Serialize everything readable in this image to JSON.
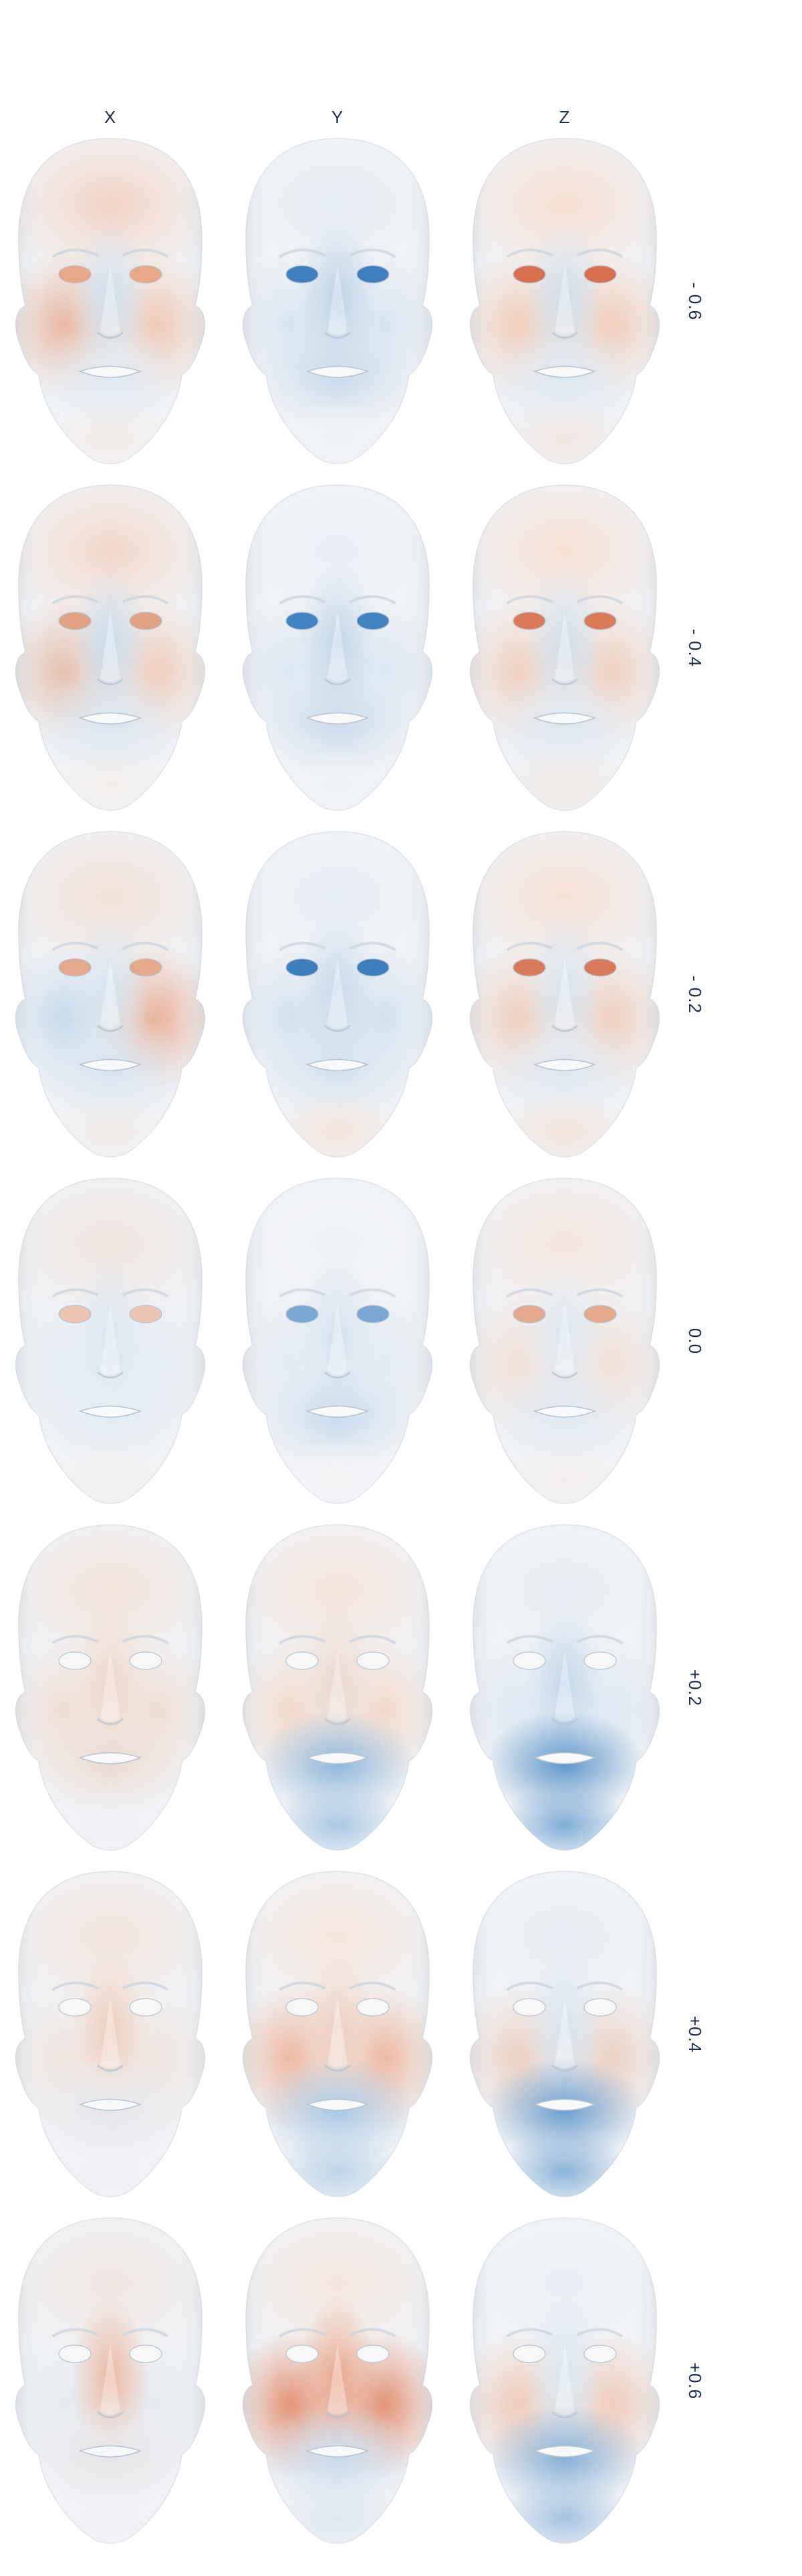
{
  "columns": [
    "X",
    "Y",
    "Z"
  ],
  "rows": [
    {
      "label": "- 0.6",
      "faces": [
        {
          "forehead": "#f3d3c4",
          "cheek_l": "#e9b9a2",
          "cheek_r": "#f0c9b5",
          "mid": "#cfe0ee",
          "lower": "#dfe8f1",
          "chin": "#f3ece8",
          "eye": "#e8a887"
        },
        {
          "forehead": "#e7eef5",
          "cheek_l": "#d6e4f0",
          "cheek_r": "#d6e4f0",
          "mid": "#bcd3e7",
          "lower": "#c9dbeb",
          "chin": "#eef2f6",
          "eye": "#3f7fbf"
        },
        {
          "forehead": "#f6ddd0",
          "cheek_l": "#f1cdb9",
          "cheek_r": "#f1cdb9",
          "mid": "#cfdeeb",
          "lower": "#dbe6f0",
          "chin": "#f1e6e0",
          "eye": "#d8704f"
        }
      ]
    },
    {
      "label": "- 0.4",
      "faces": [
        {
          "forehead": "#f3d7c9",
          "cheek_l": "#e6c0ad",
          "cheek_r": "#f0cdbb",
          "mid": "#c9dcec",
          "lower": "#d8e4ef",
          "chin": "#f2eeeb",
          "eye": "#e2a284"
        },
        {
          "forehead": "#e9f0f6",
          "cheek_l": "#d9e6f1",
          "cheek_r": "#d9e6f1",
          "mid": "#c1d6e9",
          "lower": "#cadcec",
          "chin": "#eef2f6",
          "eye": "#4183c2"
        },
        {
          "forehead": "#f6dfd2",
          "cheek_l": "#f0d0bf",
          "cheek_r": "#f0d0bf",
          "mid": "#d0dfec",
          "lower": "#dce6f0",
          "chin": "#f0e8e3",
          "eye": "#d97a59"
        }
      ]
    },
    {
      "label": "- 0.2",
      "faces": [
        {
          "forehead": "#f1dfd5",
          "cheek_l": "#c7dbec",
          "cheek_r": "#e9b39b",
          "mid": "#d5e3ef",
          "lower": "#d6e3ef",
          "chin": "#f1ece9",
          "eye": "#e3a98c"
        },
        {
          "forehead": "#e8eff6",
          "cheek_l": "#d2e2ef",
          "cheek_r": "#d2e2ef",
          "mid": "#c7daeb",
          "lower": "#d2e1ee",
          "chin": "#f4e4da",
          "eye": "#3d7ebf"
        },
        {
          "forehead": "#f5dfd3",
          "cheek_l": "#efcfbe",
          "cheek_r": "#efcfbe",
          "mid": "#d6e3ee",
          "lower": "#dde7f0",
          "chin": "#f3e3d9",
          "eye": "#d97b5a"
        }
      ]
    },
    {
      "label": "0.0",
      "faces": [
        {
          "forehead": "#f0e4de",
          "cheek_l": "#e4ecf4",
          "cheek_r": "#e4ecf4",
          "mid": "#d8e5f0",
          "lower": "#e2ebf3",
          "chin": "#f1efee",
          "eye": "#eac4b1"
        },
        {
          "forehead": "#eef2f6",
          "cheek_l": "#e1eaf3",
          "cheek_r": "#e1eaf3",
          "mid": "#d3e2ef",
          "lower": "#c9dced",
          "chin": "#f2f3f5",
          "eye": "#7aa8d3"
        },
        {
          "forehead": "#f4e5dd",
          "cheek_l": "#efded4",
          "cheek_r": "#efded4",
          "mid": "#dce7f1",
          "lower": "#e0e9f2",
          "chin": "#f2eeec",
          "eye": "#e2a98c"
        }
      ]
    },
    {
      "label": "+0.2",
      "faces": [
        {
          "forehead": "#f2e2d9",
          "cheek_l": "#efdcd1",
          "cheek_r": "#efdcd1",
          "mid": "#f0d6c8",
          "lower": "#ebdad0",
          "chin": "#eef0f3",
          "eye": "#f7f7f7"
        },
        {
          "forehead": "#f5e4da",
          "cheek_l": "#f2d9ca",
          "cheek_r": "#f2d9ca",
          "mid": "#ecd8cd",
          "lower": "#8fb8dc",
          "chin": "#a9c8e4",
          "eye": "#f7f7f7"
        },
        {
          "forehead": "#e9eff5",
          "cheek_l": "#dbe7f2",
          "cheek_r": "#dbe7f2",
          "mid": "#c2d7ea",
          "lower": "#5e97cb",
          "chin": "#7fadd7",
          "eye": "#f7f7f7"
        }
      ]
    },
    {
      "label": "+0.4",
      "faces": [
        {
          "forehead": "#f3e4dc",
          "cheek_l": "#eee3dd",
          "cheek_r": "#eee3dd",
          "mid": "#efcdbb",
          "lower": "#e6e6ea",
          "chin": "#eef0f3",
          "eye": "#f7f7f7"
        },
        {
          "forehead": "#f6e6dc",
          "cheek_l": "#eeb9a0",
          "cheek_r": "#eeb9a0",
          "mid": "#efd0c0",
          "lower": "#a9c8e4",
          "chin": "#bcd4e9",
          "eye": "#f7f7f7"
        },
        {
          "forehead": "#e9eff5",
          "cheek_l": "#ecd0c2",
          "cheek_r": "#ecd0c2",
          "mid": "#d5e3ef",
          "lower": "#6c9fcf",
          "chin": "#8ab4da",
          "eye": "#f7f7f7"
        }
      ]
    },
    {
      "label": "+0.6",
      "faces": [
        {
          "forehead": "#f0e6e1",
          "cheek_l": "#e6eaf0",
          "cheek_r": "#e6eaf0",
          "mid": "#ebb7a0",
          "lower": "#e6e4e6",
          "chin": "#eef0f3",
          "eye": "#f7f7f7"
        },
        {
          "forehead": "#f4e6de",
          "cheek_l": "#e49577",
          "cheek_r": "#e49577",
          "mid": "#eaa98c",
          "lower": "#c7d9eb",
          "chin": "#dbe6f0",
          "eye": "#f7f7f7"
        },
        {
          "forehead": "#eaf0f6",
          "cheek_l": "#efcbb9",
          "cheek_r": "#efcbb9",
          "mid": "#d7e5f0",
          "lower": "#85b0d8",
          "chin": "#a3c3e2",
          "eye": "#f7f7f7"
        }
      ]
    }
  ]
}
